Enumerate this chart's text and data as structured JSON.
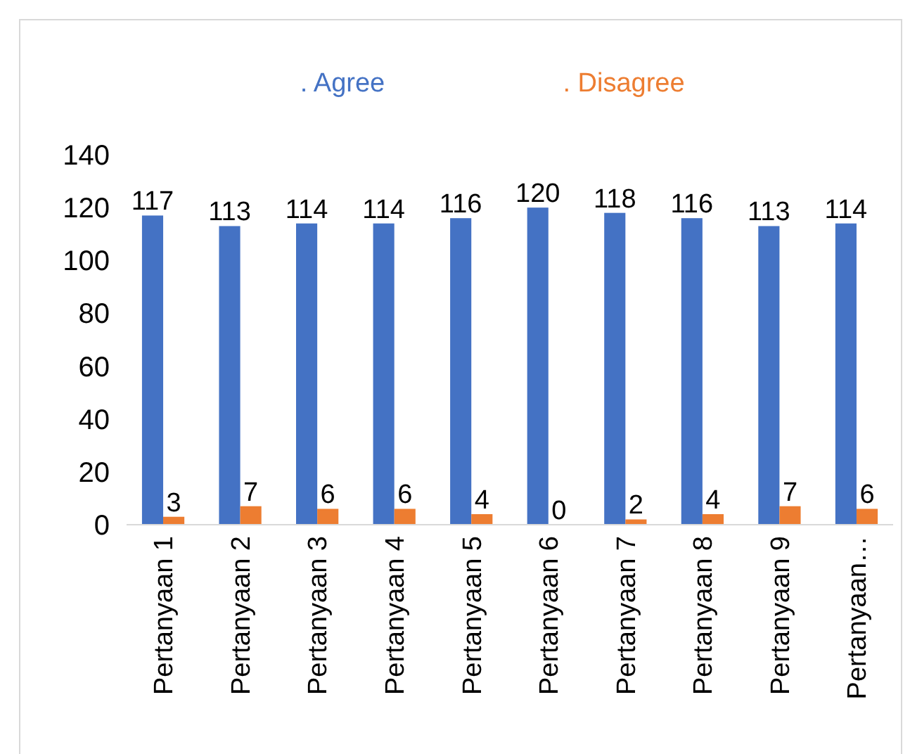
{
  "chart_data": {
    "type": "bar",
    "categories": [
      "Pertanyaan 1",
      "Pertanyaan 2",
      "Pertanyaan 3",
      "Pertanyaan 4",
      "Pertanyaan 5",
      "Pertanyaan 6",
      "Pertanyaan 7",
      "Pertanyaan 8",
      "Pertanyaan 9",
      "Pertanyaan…"
    ],
    "series": [
      {
        "name": ". Agree",
        "color": "#4472c4",
        "values": [
          117,
          113,
          114,
          114,
          116,
          120,
          118,
          116,
          113,
          114
        ]
      },
      {
        "name": ". Disagree",
        "color": "#ed7d31",
        "values": [
          3,
          7,
          6,
          6,
          4,
          0,
          2,
          4,
          7,
          6
        ]
      }
    ],
    "ylim": [
      0,
      140
    ],
    "yticks": [
      0,
      20,
      40,
      60,
      80,
      100,
      120,
      140
    ],
    "grid": false,
    "legend": "top",
    "data_labels": true
  }
}
